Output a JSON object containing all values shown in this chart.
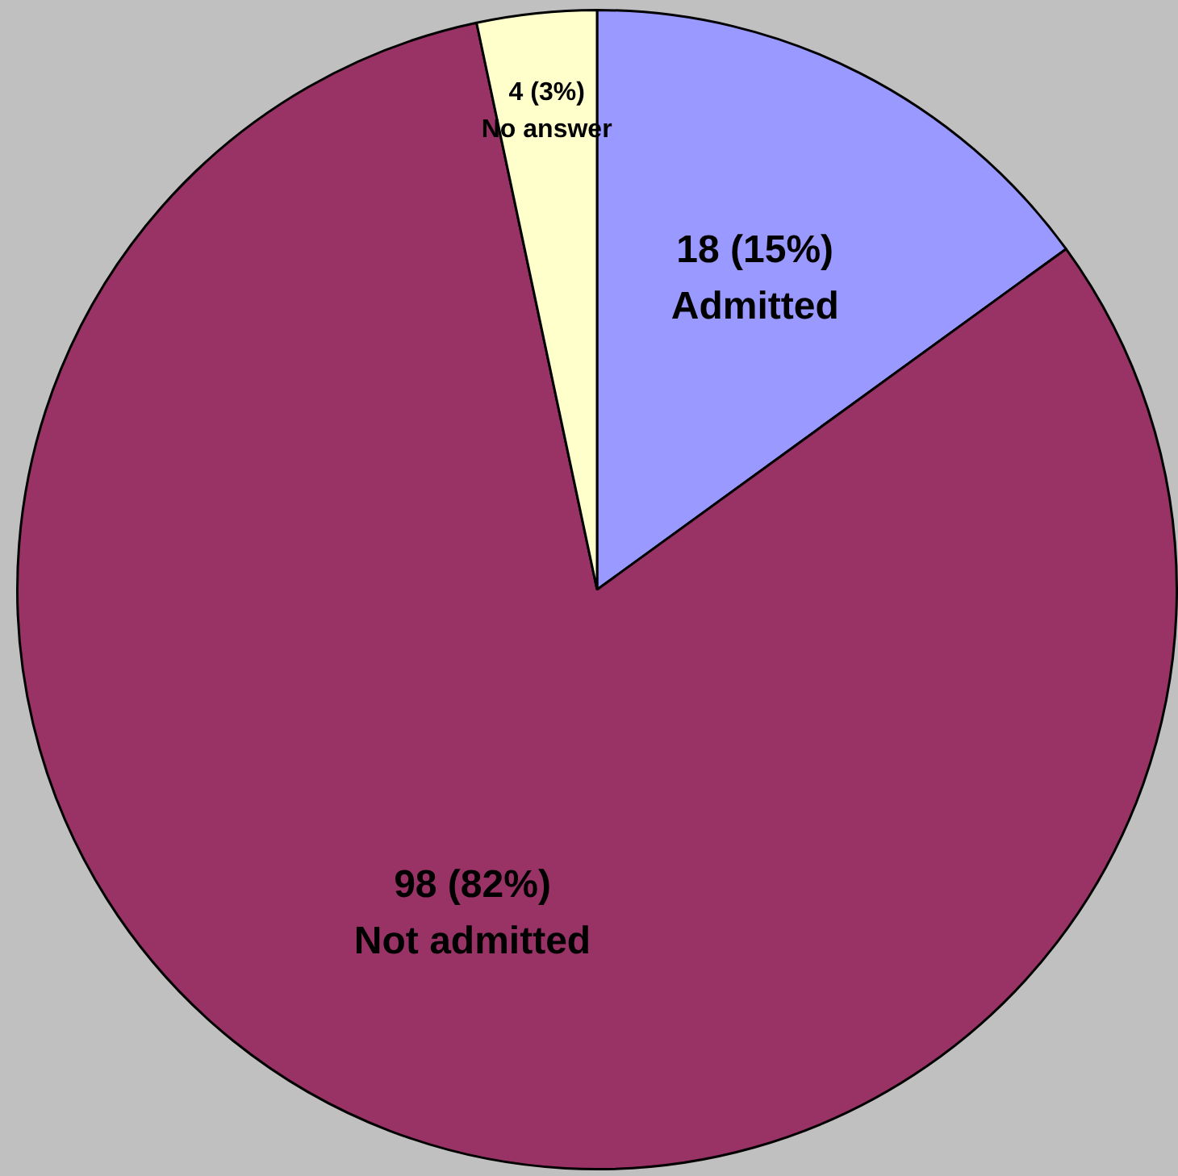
{
  "chart_data": {
    "type": "pie",
    "categories": [
      "Admitted",
      "Not admitted",
      "No answer"
    ],
    "values": [
      18,
      98,
      4
    ],
    "colors": [
      "#9999ff",
      "#993366",
      "#ffffcc"
    ],
    "value_labels": [
      "18 (15%)",
      "98 (82%)",
      "4 (3%)"
    ]
  }
}
